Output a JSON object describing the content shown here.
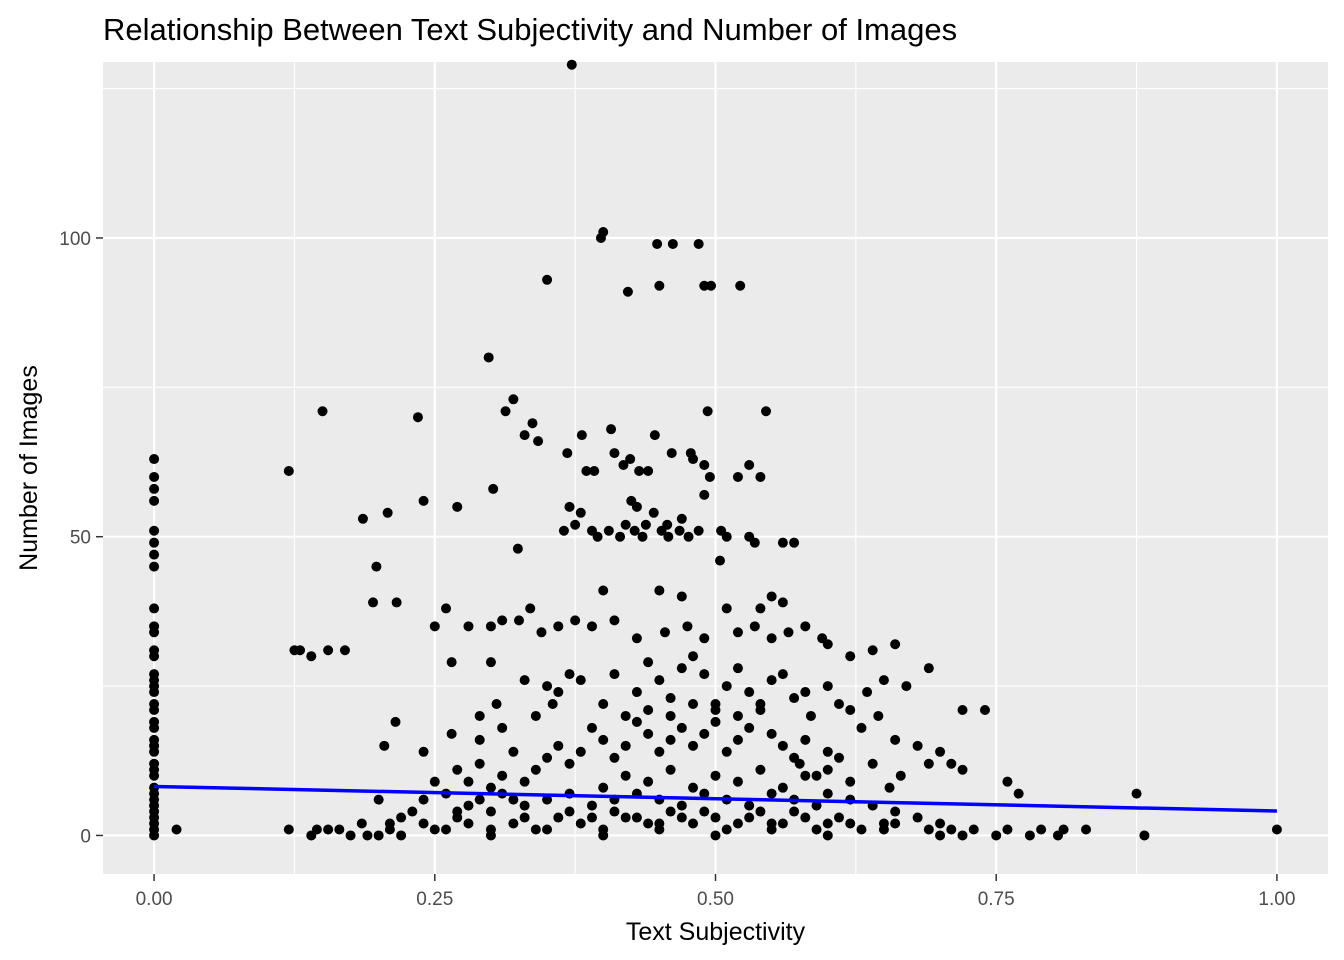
{
  "chart_data": {
    "type": "scatter",
    "title": "Relationship Between Text Subjectivity and Number of Images",
    "xlabel": "Text Subjectivity",
    "ylabel": "Number of Images",
    "xlim": [
      -0.0455,
      1.0455
    ],
    "ylim": [
      -6.45,
      129.45
    ],
    "x_ticks": [
      0,
      0.25,
      0.5,
      0.75,
      1
    ],
    "x_tick_labels": [
      "0.00",
      "0.25",
      "0.50",
      "0.75",
      "1.00"
    ],
    "y_ticks": [
      0,
      50,
      100
    ],
    "y_tick_labels": [
      "0",
      "50",
      "100"
    ],
    "grid": true,
    "legend": "none",
    "colors": {
      "panel": "#ebebeb",
      "grid": "#ffffff",
      "point": "#000000",
      "trend": "#0000ff"
    },
    "trend_line": {
      "x": [
        0,
        1
      ],
      "y": [
        8.2,
        4.1
      ]
    },
    "points": [
      [
        0.372,
        129
      ],
      [
        0.4,
        101
      ],
      [
        0.398,
        100
      ],
      [
        0.448,
        99
      ],
      [
        0.462,
        99
      ],
      [
        0.485,
        99
      ],
      [
        0.35,
        93
      ],
      [
        0.45,
        92
      ],
      [
        0.49,
        92
      ],
      [
        0.496,
        92
      ],
      [
        0.522,
        92
      ],
      [
        0.422,
        91
      ],
      [
        0.298,
        80
      ],
      [
        0.32,
        73
      ],
      [
        0.313,
        71
      ],
      [
        0.15,
        71
      ],
      [
        0.493,
        71
      ],
      [
        0.545,
        71
      ],
      [
        0.235,
        70
      ],
      [
        0.337,
        69
      ],
      [
        0.33,
        67
      ],
      [
        0.342,
        66
      ],
      [
        0.381,
        67
      ],
      [
        0.407,
        68
      ],
      [
        0.446,
        67
      ],
      [
        0.12,
        61
      ],
      [
        0.302,
        58
      ],
      [
        0.368,
        64
      ],
      [
        0.41,
        64
      ],
      [
        0.418,
        62
      ],
      [
        0.424,
        63
      ],
      [
        0.461,
        64
      ],
      [
        0.48,
        63
      ],
      [
        0.478,
        64
      ],
      [
        0.49,
        62
      ],
      [
        0.52,
        60
      ],
      [
        0.53,
        62
      ],
      [
        0.54,
        60
      ],
      [
        0.385,
        61
      ],
      [
        0.392,
        61
      ],
      [
        0.432,
        61
      ],
      [
        0.44,
        61
      ],
      [
        0.495,
        60
      ],
      [
        0.24,
        56
      ],
      [
        0.27,
        55
      ],
      [
        0.208,
        54
      ],
      [
        0.186,
        53
      ],
      [
        0.37,
        55
      ],
      [
        0.38,
        54
      ],
      [
        0.425,
        56
      ],
      [
        0.43,
        55
      ],
      [
        0.445,
        54
      ],
      [
        0.457,
        52
      ],
      [
        0.47,
        53
      ],
      [
        0.49,
        57
      ],
      [
        0.365,
        51
      ],
      [
        0.375,
        52
      ],
      [
        0.39,
        51
      ],
      [
        0.395,
        50
      ],
      [
        0.405,
        51
      ],
      [
        0.415,
        50
      ],
      [
        0.42,
        52
      ],
      [
        0.428,
        51
      ],
      [
        0.435,
        50
      ],
      [
        0.438,
        52
      ],
      [
        0.452,
        51
      ],
      [
        0.458,
        50
      ],
      [
        0.468,
        51
      ],
      [
        0.476,
        50
      ],
      [
        0.485,
        51
      ],
      [
        0.505,
        51
      ],
      [
        0.51,
        50
      ],
      [
        0.53,
        50
      ],
      [
        0.535,
        49
      ],
      [
        0.56,
        49
      ],
      [
        0.57,
        49
      ],
      [
        0.324,
        48
      ],
      [
        0.198,
        45
      ],
      [
        0.504,
        46
      ],
      [
        0.195,
        39
      ],
      [
        0.216,
        39
      ],
      [
        0.26,
        38
      ],
      [
        0.335,
        38
      ],
      [
        0.4,
        41
      ],
      [
        0.45,
        41
      ],
      [
        0.47,
        40
      ],
      [
        0.51,
        38
      ],
      [
        0.55,
        40
      ],
      [
        0.54,
        38
      ],
      [
        0.56,
        39
      ],
      [
        0.125,
        31
      ],
      [
        0.13,
        31
      ],
      [
        0.14,
        30
      ],
      [
        0.17,
        31
      ],
      [
        0.155,
        31
      ],
      [
        0.25,
        35
      ],
      [
        0.28,
        35
      ],
      [
        0.3,
        35
      ],
      [
        0.31,
        36
      ],
      [
        0.325,
        36
      ],
      [
        0.345,
        34
      ],
      [
        0.36,
        35
      ],
      [
        0.375,
        36
      ],
      [
        0.39,
        35
      ],
      [
        0.41,
        36
      ],
      [
        0.43,
        33
      ],
      [
        0.455,
        34
      ],
      [
        0.475,
        35
      ],
      [
        0.49,
        33
      ],
      [
        0.52,
        34
      ],
      [
        0.535,
        35
      ],
      [
        0.55,
        33
      ],
      [
        0.565,
        34
      ],
      [
        0.58,
        35
      ],
      [
        0.595,
        33
      ],
      [
        0.6,
        32
      ],
      [
        0.62,
        30
      ],
      [
        0.64,
        31
      ],
      [
        0.66,
        32
      ],
      [
        0.69,
        28
      ],
      [
        0.72,
        21
      ],
      [
        0.74,
        21
      ],
      [
        0.215,
        19
      ],
      [
        0.205,
        15
      ],
      [
        0.24,
        14
      ],
      [
        0.265,
        17
      ],
      [
        0.29,
        16
      ],
      [
        0.305,
        22
      ],
      [
        0.265,
        29
      ],
      [
        0.3,
        29
      ],
      [
        0.33,
        26
      ],
      [
        0.35,
        25
      ],
      [
        0.37,
        27
      ],
      [
        0.29,
        20
      ],
      [
        0.31,
        18
      ],
      [
        0.34,
        20
      ],
      [
        0.355,
        22
      ],
      [
        0.6,
        25
      ],
      [
        0.61,
        22
      ],
      [
        0.62,
        21
      ],
      [
        0.635,
        24
      ],
      [
        0.65,
        26
      ],
      [
        0.67,
        25
      ],
      [
        0.63,
        18
      ],
      [
        0.645,
        20
      ],
      [
        0.66,
        16
      ],
      [
        0.68,
        15
      ],
      [
        0.7,
        14
      ],
      [
        0.71,
        12
      ],
      [
        0.72,
        11
      ],
      [
        0.69,
        12
      ],
      [
        0.665,
        10
      ],
      [
        0.64,
        12
      ],
      [
        0.655,
        8
      ],
      [
        0.62,
        9
      ],
      [
        0.61,
        13
      ],
      [
        0.76,
        9
      ],
      [
        0.77,
        7
      ],
      [
        0.875,
        7
      ],
      [
        0.6,
        11
      ],
      [
        0.58,
        16
      ],
      [
        0.585,
        20
      ],
      [
        0.59,
        10
      ],
      [
        0.6,
        14
      ],
      [
        0.575,
        12
      ],
      [
        0.56,
        15
      ],
      [
        0.57,
        13
      ],
      [
        0.55,
        17
      ],
      [
        0.53,
        18
      ],
      [
        0.52,
        16
      ],
      [
        0.51,
        14
      ],
      [
        0.5,
        19
      ],
      [
        0.49,
        17
      ],
      [
        0.48,
        15
      ],
      [
        0.47,
        18
      ],
      [
        0.46,
        16
      ],
      [
        0.45,
        14
      ],
      [
        0.44,
        17
      ],
      [
        0.43,
        19
      ],
      [
        0.42,
        15
      ],
      [
        0.41,
        13
      ],
      [
        0.4,
        16
      ],
      [
        0.39,
        18
      ],
      [
        0.38,
        14
      ],
      [
        0.37,
        12
      ],
      [
        0.36,
        15
      ],
      [
        0.35,
        13
      ],
      [
        0.34,
        11
      ],
      [
        0.33,
        9
      ],
      [
        0.32,
        14
      ],
      [
        0.31,
        10
      ],
      [
        0.3,
        8
      ],
      [
        0.29,
        12
      ],
      [
        0.28,
        9
      ],
      [
        0.27,
        11
      ],
      [
        0.26,
        7
      ],
      [
        0.25,
        9
      ],
      [
        0.24,
        6
      ],
      [
        0.23,
        4
      ],
      [
        0.22,
        3
      ],
      [
        0.21,
        2
      ],
      [
        0.2,
        6
      ],
      [
        0.185,
        2
      ],
      [
        0.28,
        5
      ],
      [
        0.3,
        4
      ],
      [
        0.32,
        6
      ],
      [
        0.4,
        8
      ],
      [
        0.42,
        10
      ],
      [
        0.44,
        9
      ],
      [
        0.46,
        11
      ],
      [
        0.48,
        8
      ],
      [
        0.5,
        10
      ],
      [
        0.52,
        9
      ],
      [
        0.54,
        11
      ],
      [
        0.56,
        8
      ],
      [
        0.58,
        10
      ],
      [
        0.6,
        7
      ],
      [
        0.62,
        6
      ],
      [
        0.64,
        5
      ],
      [
        0.66,
        4
      ],
      [
        0.68,
        3
      ],
      [
        0.7,
        2
      ],
      [
        0.43,
        24
      ],
      [
        0.45,
        26
      ],
      [
        0.47,
        28
      ],
      [
        0.49,
        27
      ],
      [
        0.51,
        25
      ],
      [
        0.53,
        24
      ],
      [
        0.55,
        26
      ],
      [
        0.57,
        23
      ],
      [
        0.41,
        27
      ],
      [
        0.44,
        29
      ],
      [
        0.46,
        23
      ],
      [
        0.48,
        30
      ],
      [
        0.5,
        22
      ],
      [
        0.52,
        28
      ],
      [
        0.54,
        21
      ],
      [
        0.56,
        27
      ],
      [
        0.58,
        24
      ],
      [
        0.4,
        22
      ],
      [
        0.38,
        26
      ],
      [
        0.36,
        24
      ],
      [
        0.42,
        20
      ],
      [
        0.44,
        21
      ],
      [
        0.46,
        20
      ],
      [
        0.48,
        22
      ],
      [
        0.5,
        21
      ],
      [
        0.52,
        20
      ],
      [
        0.54,
        22
      ],
      [
        0.45,
        6
      ],
      [
        0.47,
        5
      ],
      [
        0.49,
        7
      ],
      [
        0.51,
        6
      ],
      [
        0.53,
        5
      ],
      [
        0.55,
        7
      ],
      [
        0.57,
        6
      ],
      [
        0.59,
        5
      ],
      [
        0.43,
        7
      ],
      [
        0.41,
        6
      ],
      [
        0.39,
        5
      ],
      [
        0.37,
        7
      ],
      [
        0.35,
        6
      ],
      [
        0.33,
        5
      ],
      [
        0.31,
        7
      ],
      [
        0.29,
        6
      ],
      [
        0.27,
        4
      ],
      [
        0.0,
        63
      ],
      [
        0.0,
        60
      ],
      [
        0.0,
        58
      ],
      [
        0.0,
        56
      ],
      [
        0.0,
        51
      ],
      [
        0.0,
        49
      ],
      [
        0.0,
        47
      ],
      [
        0.0,
        45
      ],
      [
        0.0,
        38
      ],
      [
        0.0,
        35
      ],
      [
        0.0,
        34
      ],
      [
        0.0,
        31
      ],
      [
        0.0,
        30
      ],
      [
        0.0,
        27
      ],
      [
        0.0,
        26
      ],
      [
        0.0,
        25
      ],
      [
        0.0,
        24
      ],
      [
        0.0,
        22
      ],
      [
        0.0,
        21
      ],
      [
        0.0,
        19
      ],
      [
        0.0,
        18
      ],
      [
        0.0,
        16
      ],
      [
        0.0,
        15
      ],
      [
        0.0,
        14
      ],
      [
        0.0,
        12
      ],
      [
        0.0,
        11
      ],
      [
        0.0,
        10
      ],
      [
        0.0,
        8
      ],
      [
        0.0,
        7
      ],
      [
        0.0,
        6
      ],
      [
        0.0,
        5
      ],
      [
        0.0,
        4
      ],
      [
        0.0,
        3
      ],
      [
        0.0,
        2
      ],
      [
        0.0,
        1
      ],
      [
        0.0,
        0
      ],
      [
        0.02,
        1
      ],
      [
        0.12,
        1
      ],
      [
        0.14,
        0
      ],
      [
        0.145,
        1
      ],
      [
        0.155,
        1
      ],
      [
        0.165,
        1
      ],
      [
        0.175,
        0
      ],
      [
        0.19,
        0
      ],
      [
        0.2,
        0
      ],
      [
        0.21,
        1
      ],
      [
        0.22,
        0
      ],
      [
        0.25,
        1
      ],
      [
        0.3,
        0
      ],
      [
        0.35,
        1
      ],
      [
        0.4,
        0
      ],
      [
        0.45,
        1
      ],
      [
        0.5,
        0
      ],
      [
        0.55,
        1
      ],
      [
        0.6,
        0
      ],
      [
        0.65,
        1
      ],
      [
        0.7,
        0
      ],
      [
        0.72,
        0
      ],
      [
        0.73,
        1
      ],
      [
        0.75,
        0
      ],
      [
        0.76,
        1
      ],
      [
        0.78,
        0
      ],
      [
        0.79,
        1
      ],
      [
        0.805,
        0
      ],
      [
        0.81,
        1
      ],
      [
        0.83,
        1
      ],
      [
        0.882,
        0
      ],
      [
        1.0,
        1
      ],
      [
        0.62,
        2
      ],
      [
        0.66,
        2
      ],
      [
        0.69,
        1
      ],
      [
        0.71,
        1
      ],
      [
        0.3,
        1
      ],
      [
        0.32,
        2
      ],
      [
        0.34,
        1
      ],
      [
        0.36,
        3
      ],
      [
        0.38,
        2
      ],
      [
        0.4,
        1
      ],
      [
        0.42,
        3
      ],
      [
        0.44,
        2
      ],
      [
        0.46,
        4
      ],
      [
        0.48,
        2
      ],
      [
        0.5,
        3
      ],
      [
        0.52,
        2
      ],
      [
        0.54,
        4
      ],
      [
        0.56,
        2
      ],
      [
        0.58,
        3
      ],
      [
        0.6,
        2
      ],
      [
        0.41,
        4
      ],
      [
        0.43,
        3
      ],
      [
        0.45,
        2
      ],
      [
        0.47,
        3
      ],
      [
        0.49,
        4
      ],
      [
        0.51,
        1
      ],
      [
        0.53,
        3
      ],
      [
        0.55,
        2
      ],
      [
        0.57,
        4
      ],
      [
        0.59,
        1
      ],
      [
        0.28,
        2
      ],
      [
        0.26,
        1
      ],
      [
        0.24,
        2
      ],
      [
        0.27,
        3
      ],
      [
        0.33,
        3
      ],
      [
        0.37,
        4
      ],
      [
        0.39,
        3
      ],
      [
        0.61,
        3
      ],
      [
        0.63,
        1
      ],
      [
        0.65,
        2
      ]
    ]
  }
}
